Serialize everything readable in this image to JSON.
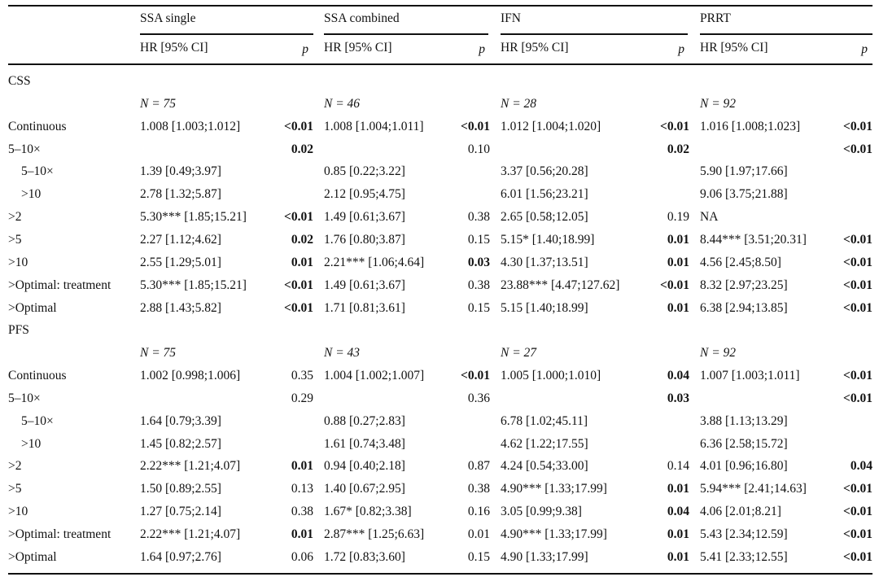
{
  "header": {
    "groups": [
      "SSA single",
      "SSA combined",
      "IFN",
      "PRRT"
    ],
    "hr_label": "HR [95% CI]",
    "p_label": "p"
  },
  "sections": [
    {
      "title": "CSS",
      "n": [
        "N = 75",
        "N = 46",
        "N = 28",
        "N = 92"
      ],
      "rows": [
        {
          "label": "Continuous",
          "indent": false,
          "cells": [
            [
              "1.008 [1.003;1.012]",
              "<0.01",
              true
            ],
            [
              "1.008 [1.004;1.011]",
              "<0.01",
              true
            ],
            [
              "1.012 [1.004;1.020]",
              "<0.01",
              true
            ],
            [
              "1.016 [1.008;1.023]",
              "<0.01",
              true
            ]
          ]
        },
        {
          "label": "5–10×",
          "indent": false,
          "cells": [
            [
              "",
              "0.02",
              true
            ],
            [
              "",
              "0.10",
              false
            ],
            [
              "",
              "0.02",
              true
            ],
            [
              "",
              "<0.01",
              true
            ]
          ]
        },
        {
          "label": "5–10×",
          "indent": true,
          "cells": [
            [
              "1.39 [0.49;3.97]",
              "",
              false
            ],
            [
              "0.85 [0.22;3.22]",
              "",
              false
            ],
            [
              "3.37 [0.56;20.28]",
              "",
              false
            ],
            [
              "5.90 [1.97;17.66]",
              "",
              false
            ]
          ]
        },
        {
          "label": ">10",
          "indent": true,
          "cells": [
            [
              "2.78 [1.32;5.87]",
              "",
              false
            ],
            [
              "2.12 [0.95;4.75]",
              "",
              false
            ],
            [
              "6.01 [1.56;23.21]",
              "",
              false
            ],
            [
              "9.06 [3.75;21.88]",
              "",
              false
            ]
          ]
        },
        {
          "label": ">2",
          "indent": false,
          "cells": [
            [
              "5.30*** [1.85;15.21]",
              "<0.01",
              true
            ],
            [
              "1.49 [0.61;3.67]",
              "0.38",
              false
            ],
            [
              "2.65 [0.58;12.05]",
              "0.19",
              false
            ],
            [
              "NA",
              "",
              false
            ]
          ]
        },
        {
          "label": ">5",
          "indent": false,
          "cells": [
            [
              "2.27 [1.12;4.62]",
              "0.02",
              true
            ],
            [
              "1.76 [0.80;3.87]",
              "0.15",
              false
            ],
            [
              "5.15* [1.40;18.99]",
              "0.01",
              true
            ],
            [
              "8.44*** [3.51;20.31]",
              "<0.01",
              true
            ]
          ]
        },
        {
          "label": ">10",
          "indent": false,
          "cells": [
            [
              "2.55 [1.29;5.01]",
              "0.01",
              true
            ],
            [
              "2.21*** [1.06;4.64]",
              "0.03",
              true
            ],
            [
              "4.30 [1.37;13.51]",
              "0.01",
              true
            ],
            [
              "4.56 [2.45;8.50]",
              "<0.01",
              true
            ]
          ]
        },
        {
          "label": ">Optimal: treatment",
          "indent": false,
          "cells": [
            [
              "5.30*** [1.85;15.21]",
              "<0.01",
              true
            ],
            [
              "1.49 [0.61;3.67]",
              "0.38",
              false
            ],
            [
              "23.88*** [4.47;127.62]",
              "<0.01",
              true
            ],
            [
              "8.32 [2.97;23.25]",
              "<0.01",
              true
            ]
          ]
        },
        {
          "label": ">Optimal",
          "indent": false,
          "cells": [
            [
              "2.88 [1.43;5.82]",
              "<0.01",
              true
            ],
            [
              "1.71 [0.81;3.61]",
              "0.15",
              false
            ],
            [
              "5.15 [1.40;18.99]",
              "0.01",
              true
            ],
            [
              "6.38 [2.94;13.85]",
              "<0.01",
              true
            ]
          ]
        }
      ]
    },
    {
      "title": "PFS",
      "n": [
        "N = 75",
        "N = 43",
        "N = 27",
        "N = 92"
      ],
      "rows": [
        {
          "label": "Continuous",
          "indent": false,
          "cells": [
            [
              "1.002 [0.998;1.006]",
              "0.35",
              false
            ],
            [
              "1.004 [1.002;1.007]",
              "<0.01",
              true
            ],
            [
              "1.005 [1.000;1.010]",
              "0.04",
              true
            ],
            [
              "1.007 [1.003;1.011]",
              "<0.01",
              true
            ]
          ]
        },
        {
          "label": "5–10×",
          "indent": false,
          "cells": [
            [
              "",
              "0.29",
              false
            ],
            [
              "",
              "0.36",
              false
            ],
            [
              "",
              "0.03",
              true
            ],
            [
              "",
              "<0.01",
              true
            ]
          ]
        },
        {
          "label": "5–10×",
          "indent": true,
          "cells": [
            [
              "1.64 [0.79;3.39]",
              "",
              false
            ],
            [
              "0.88 [0.27;2.83]",
              "",
              false
            ],
            [
              "6.78 [1.02;45.11]",
              "",
              false
            ],
            [
              "3.88 [1.13;13.29]",
              "",
              false
            ]
          ]
        },
        {
          "label": ">10",
          "indent": true,
          "cells": [
            [
              "1.45 [0.82;2.57]",
              "",
              false
            ],
            [
              "1.61 [0.74;3.48]",
              "",
              false
            ],
            [
              "4.62 [1.22;17.55]",
              "",
              false
            ],
            [
              "6.36 [2.58;15.72]",
              "",
              false
            ]
          ]
        },
        {
          "label": ">2",
          "indent": false,
          "cells": [
            [
              "2.22*** [1.21;4.07]",
              "0.01",
              true
            ],
            [
              "0.94 [0.40;2.18]",
              "0.87",
              false
            ],
            [
              "4.24 [0.54;33.00]",
              "0.14",
              false
            ],
            [
              "4.01 [0.96;16.80]",
              "0.04",
              true
            ]
          ]
        },
        {
          "label": ">5",
          "indent": false,
          "cells": [
            [
              "1.50 [0.89;2.55]",
              "0.13",
              false
            ],
            [
              "1.40 [0.67;2.95]",
              "0.38",
              false
            ],
            [
              "4.90*** [1.33;17.99]",
              "0.01",
              true
            ],
            [
              "5.94*** [2.41;14.63]",
              "<0.01",
              true
            ]
          ]
        },
        {
          "label": ">10",
          "indent": false,
          "cells": [
            [
              "1.27 [0.75;2.14]",
              "0.38",
              false
            ],
            [
              "1.67* [0.82;3.38]",
              "0.16",
              false
            ],
            [
              "3.05 [0.99;9.38]",
              "0.04",
              true
            ],
            [
              "4.06 [2.01;8.21]",
              "<0.01",
              true
            ]
          ]
        },
        {
          "label": ">Optimal: treatment",
          "indent": false,
          "cells": [
            [
              "2.22*** [1.21;4.07]",
              "0.01",
              true
            ],
            [
              "2.87*** [1.25;6.63]",
              "0.01",
              false
            ],
            [
              "4.90*** [1.33;17.99]",
              "0.01",
              true
            ],
            [
              "5.43 [2.34;12.59]",
              "<0.01",
              true
            ]
          ]
        },
        {
          "label": ">Optimal",
          "indent": false,
          "cells": [
            [
              "1.64 [0.97;2.76]",
              "0.06",
              false
            ],
            [
              "1.72 [0.83;3.60]",
              "0.15",
              false
            ],
            [
              "4.90 [1.33;17.99]",
              "0.01",
              true
            ],
            [
              "5.41 [2.33;12.55]",
              "<0.01",
              true
            ]
          ]
        }
      ]
    }
  ]
}
